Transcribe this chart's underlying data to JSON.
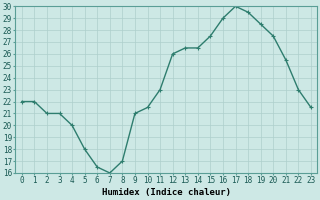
{
  "x": [
    0,
    1,
    2,
    3,
    4,
    5,
    6,
    7,
    8,
    9,
    10,
    11,
    12,
    13,
    14,
    15,
    16,
    17,
    18,
    19,
    20,
    21,
    22,
    23
  ],
  "y": [
    22,
    22,
    21,
    21,
    20,
    18,
    16.5,
    16,
    17,
    21,
    21.5,
    23,
    26,
    26.5,
    26.5,
    27.5,
    29,
    30,
    29.5,
    28.5,
    27.5,
    25.5,
    23,
    21.5
  ],
  "line_color": "#2e7d6e",
  "marker": "+",
  "background_color": "#cde8e5",
  "grid_color": "#aecfcc",
  "xlabel": "Humidex (Indice chaleur)",
  "ylim": [
    16,
    30
  ],
  "yticks": [
    16,
    17,
    18,
    19,
    20,
    21,
    22,
    23,
    24,
    25,
    26,
    27,
    28,
    29,
    30
  ],
  "xticks": [
    0,
    1,
    2,
    3,
    4,
    5,
    6,
    7,
    8,
    9,
    10,
    11,
    12,
    13,
    14,
    15,
    16,
    17,
    18,
    19,
    20,
    21,
    22,
    23
  ],
  "xlabel_fontsize": 6.5,
  "tick_fontsize": 5.5,
  "line_width": 1.0,
  "marker_size": 3
}
